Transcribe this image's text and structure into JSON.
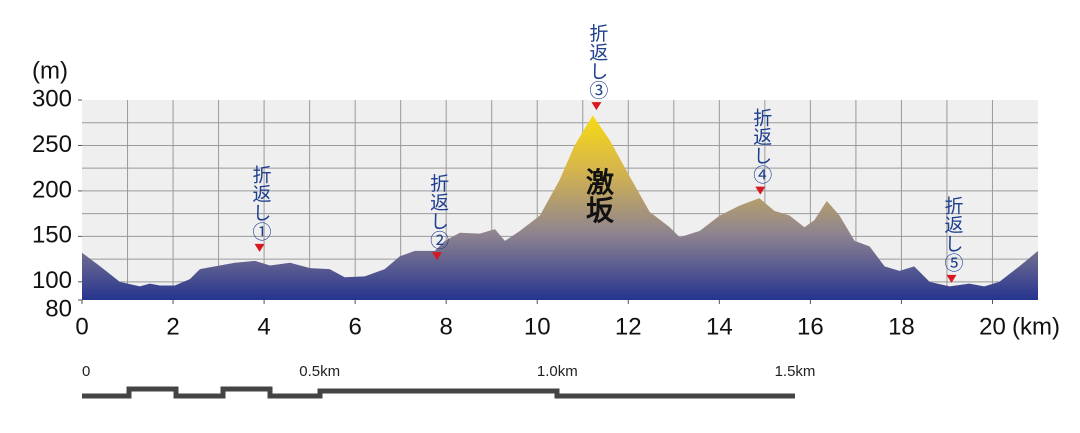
{
  "chart_data": {
    "type": "area",
    "y_label": "(m)",
    "x_label": "(km)",
    "x": [
      0,
      0.4,
      0.83,
      1.27,
      1.49,
      1.71,
      2.04,
      2.37,
      2.59,
      2.92,
      3.36,
      3.8,
      4.13,
      4.57,
      5.01,
      5.44,
      5.77,
      6.21,
      6.65,
      6.98,
      7.31,
      7.75,
      7.97,
      8.3,
      8.74,
      9.07,
      9.29,
      9.62,
      10.06,
      10.49,
      10.82,
      11.22,
      11.59,
      12.03,
      12.47,
      12.91,
      13.13,
      13.57,
      14.01,
      14.45,
      14.88,
      15.21,
      15.54,
      15.87,
      16.09,
      16.36,
      16.64,
      16.97,
      17.3,
      17.63,
      17.96,
      18.28,
      18.62,
      19.06,
      19.49,
      19.82,
      20.15,
      20.59,
      21
    ],
    "values": [
      132,
      117,
      100,
      95,
      98,
      96,
      96,
      103,
      114,
      117,
      121,
      123,
      118,
      121,
      115,
      114,
      105,
      106,
      114,
      128,
      134,
      134,
      145,
      154,
      153,
      158,
      145,
      156,
      173,
      212,
      250,
      283,
      256,
      216,
      177,
      160,
      149,
      156,
      173,
      184,
      192,
      178,
      173,
      160,
      168,
      189,
      173,
      145,
      139,
      117,
      112,
      117,
      100,
      95,
      98,
      95,
      100,
      117,
      134
    ],
    "gradient": [
      "#26348f",
      "#8f8490",
      "#d9b74a",
      "#ffe600"
    ],
    "xlim": [
      0,
      21
    ],
    "ylim": [
      80,
      300
    ],
    "xticks": [
      0,
      2,
      4,
      6,
      8,
      10,
      12,
      14,
      16,
      18,
      20
    ],
    "yticks": [
      80,
      100,
      150,
      200,
      250,
      300
    ],
    "x_grid": [
      1,
      2,
      3,
      4,
      5,
      6,
      7,
      8,
      9,
      10,
      11,
      12,
      13,
      14,
      15,
      16,
      17,
      18,
      19,
      20
    ],
    "y_grid": [
      100,
      125,
      150,
      175,
      200,
      225,
      250,
      275
    ],
    "annotations": [
      {
        "text": "折返し①",
        "x": 3.9,
        "y": 134
      },
      {
        "text": "折返し②",
        "x": 7.8,
        "y": 125
      },
      {
        "text": "折返し③",
        "x": 11.3,
        "y": 290
      },
      {
        "text": "折返し④",
        "x": 14.9,
        "y": 197
      },
      {
        "text": "折返し⑤",
        "x": 19.1,
        "y": 100
      }
    ],
    "callout": {
      "text": "激坂",
      "x": 11.3,
      "y": 195
    },
    "scale_bar": [
      {
        "value": 0,
        "label": "0"
      },
      {
        "value": 0.5,
        "label": "0.5km"
      },
      {
        "value": 1.0,
        "label": "1.0km"
      },
      {
        "value": 1.5,
        "label": "1.5km"
      }
    ]
  }
}
